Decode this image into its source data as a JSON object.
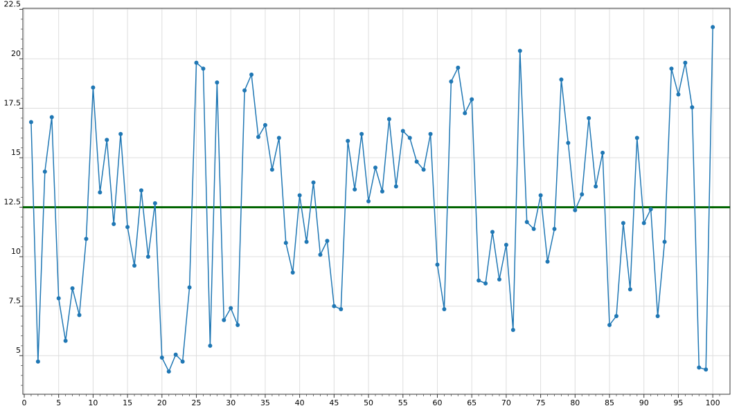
{
  "chart_data": {
    "type": "line",
    "title": "",
    "xlabel": "",
    "ylabel": "",
    "xlim": [
      -0.2,
      102.5
    ],
    "ylim": [
      3.05,
      22.55
    ],
    "x_ticks": [
      0,
      5,
      10,
      15,
      20,
      25,
      30,
      35,
      40,
      45,
      50,
      55,
      60,
      65,
      70,
      75,
      80,
      85,
      90,
      95,
      100
    ],
    "y_ticks": [
      5,
      7.5,
      10,
      12.5,
      15,
      17.5,
      20,
      22.5
    ],
    "x_tick_labels": [
      "0",
      "5",
      "10",
      "15",
      "20",
      "25",
      "30",
      "35",
      "40",
      "45",
      "50",
      "55",
      "60",
      "65",
      "70",
      "75",
      "80",
      "85",
      "90",
      "95",
      "100"
    ],
    "y_tick_labels": [
      "5",
      "7.5",
      "10",
      "12.5",
      "15",
      "17.5",
      "20",
      "22.5"
    ],
    "grid": true,
    "legend": "none",
    "series": [
      {
        "color": "#1f77b4",
        "marker": "circle",
        "x": [
          1,
          2,
          3,
          4,
          5,
          6,
          7,
          8,
          9,
          10,
          11,
          12,
          13,
          14,
          15,
          16,
          17,
          18,
          19,
          20,
          21,
          22,
          23,
          24,
          25,
          26,
          27,
          28,
          29,
          30,
          31,
          32,
          33,
          34,
          35,
          36,
          37,
          38,
          39,
          40,
          41,
          42,
          43,
          44,
          45,
          46,
          47,
          48,
          49,
          50,
          51,
          52,
          53,
          54,
          55,
          56,
          57,
          58,
          59,
          60,
          61,
          62,
          63,
          64,
          65,
          66,
          67,
          68,
          69,
          70,
          71,
          72,
          73,
          74,
          75,
          76,
          77,
          78,
          79,
          80,
          81,
          82,
          83,
          84,
          85,
          86,
          87,
          88,
          89,
          90,
          91,
          92,
          93,
          94,
          95,
          96,
          97,
          98,
          99,
          100
        ],
        "values": [
          16.8,
          4.7,
          14.3,
          17.05,
          7.9,
          5.75,
          8.4,
          7.05,
          10.9,
          18.55,
          13.25,
          15.9,
          11.65,
          16.2,
          11.5,
          9.55,
          13.35,
          10,
          12.7,
          4.9,
          4.2,
          5.05,
          4.7,
          8.45,
          19.8,
          19.5,
          5.5,
          18.8,
          6.8,
          7.4,
          6.55,
          18.4,
          19.2,
          16.05,
          16.65,
          14.4,
          16,
          10.7,
          9.2,
          13.1,
          10.75,
          13.75,
          10.1,
          10.8,
          7.5,
          7.35,
          15.85,
          13.4,
          16.2,
          12.8,
          14.5,
          13.3,
          16.95,
          13.55,
          16.35,
          16,
          14.8,
          14.4,
          16.2,
          9.6,
          7.35,
          18.85,
          19.55,
          17.25,
          17.95,
          8.8,
          8.65,
          11.25,
          8.85,
          10.6,
          6.3,
          20.4,
          11.75,
          11.4,
          13.1,
          9.75,
          11.4,
          18.95,
          15.75,
          12.35,
          13.15,
          17,
          13.55,
          15.25,
          6.55,
          7,
          11.7,
          8.35,
          16,
          11.7,
          12.4,
          7,
          10.75,
          19.5,
          18.2,
          19.8,
          17.55,
          4.4,
          4.3,
          21.6
        ]
      }
    ],
    "reference_lines": [
      {
        "type": "horizontal",
        "y": 12.5,
        "color": "#006400"
      }
    ]
  }
}
